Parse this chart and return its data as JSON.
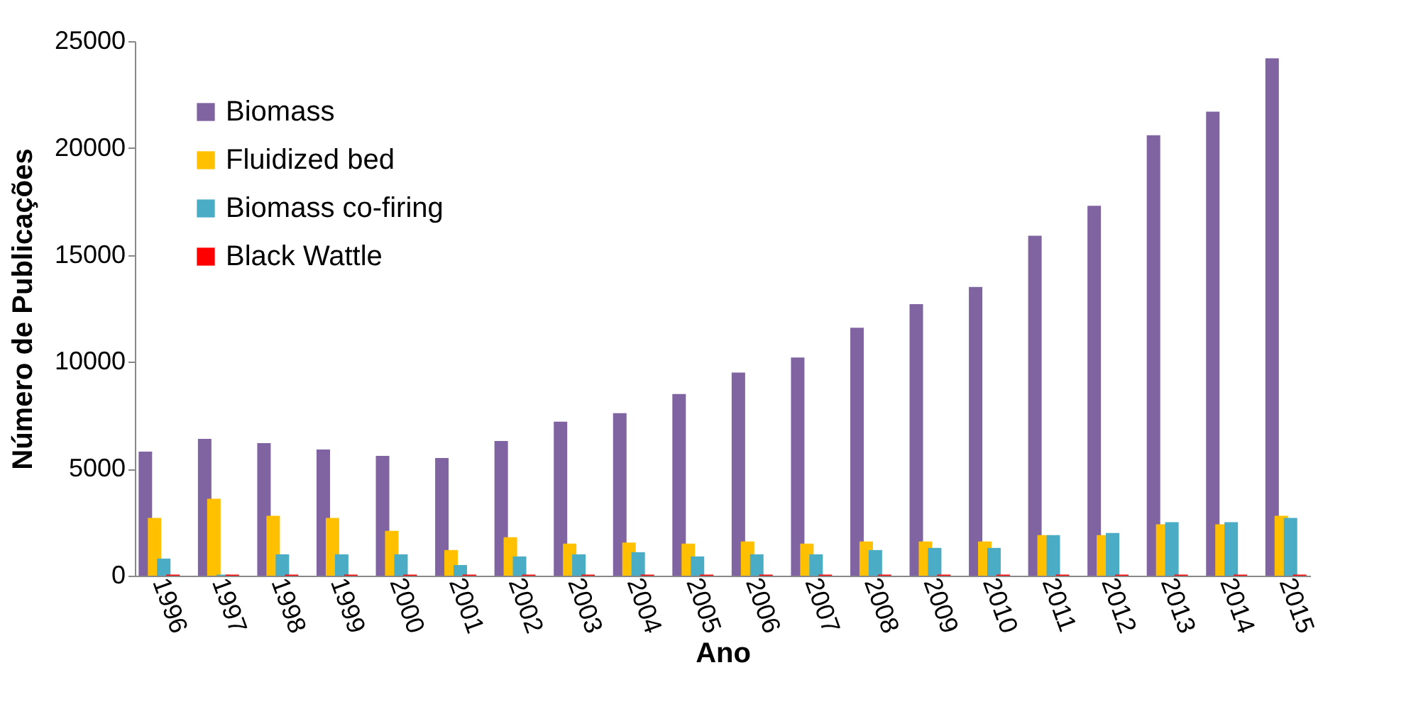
{
  "chart_data": {
    "type": "bar",
    "xlabel": "Ano",
    "ylabel": "Número de Publicações",
    "categories": [
      "1996",
      "1997",
      "1998",
      "1999",
      "2000",
      "2001",
      "2002",
      "2003",
      "2004",
      "2005",
      "2006",
      "2007",
      "2008",
      "2009",
      "2010",
      "2011",
      "2012",
      "2013",
      "2014",
      "2015"
    ],
    "series": [
      {
        "name": "Biomass",
        "color": "#8064a2",
        "values": [
          5800,
          6400,
          6200,
          5900,
          5600,
          5500,
          6300,
          7200,
          7600,
          8500,
          9500,
          10200,
          11600,
          12700,
          13500,
          15900,
          17300,
          20600,
          21700,
          24200
        ]
      },
      {
        "name": "Fluidized bed",
        "color": "#ffc000",
        "values": [
          2700,
          3600,
          2800,
          2700,
          2100,
          1200,
          1800,
          1500,
          1550,
          1500,
          1600,
          1500,
          1600,
          1600,
          1600,
          1900,
          1900,
          2400,
          2400,
          2800
        ]
      },
      {
        "name": "Biomass co-firing",
        "color": "#4bacc6",
        "values": [
          800,
          50,
          1000,
          1000,
          1000,
          500,
          900,
          1000,
          1100,
          900,
          1000,
          1000,
          1200,
          1300,
          1300,
          1900,
          2000,
          2500,
          2500,
          2700
        ]
      },
      {
        "name": "Black Wattle",
        "color": "#ff0000",
        "values": [
          50,
          50,
          50,
          50,
          50,
          50,
          50,
          50,
          50,
          50,
          50,
          50,
          50,
          50,
          50,
          50,
          50,
          50,
          50,
          50
        ]
      }
    ],
    "ylim": [
      0,
      25000
    ],
    "yticks": [
      0,
      5000,
      10000,
      15000,
      20000,
      25000
    ],
    "grid": false,
    "legend": "top left"
  }
}
